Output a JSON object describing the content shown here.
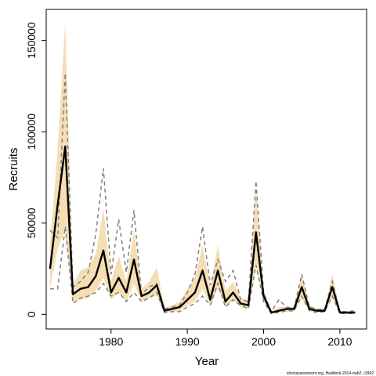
{
  "chart_data": {
    "type": "line",
    "title": "",
    "xlabel": "Year",
    "ylabel": "Recruits",
    "xlim": [
      1971.5,
      2013.5
    ],
    "ylim": [
      -8000,
      167000
    ],
    "xticks": [
      1980,
      1990,
      2000,
      2010
    ],
    "yticks": [
      0,
      50000,
      100000,
      150000
    ],
    "xtick_labels": [
      "1980",
      "1990",
      "2000",
      "2010"
    ],
    "ytick_labels": [
      "0",
      "50000",
      "100000",
      "150000"
    ],
    "grid": false,
    "legend": "none",
    "footnote": "stockassessment.org, Haddock-2014-cwb2, r2992",
    "colors": {
      "band": "#f5deb3",
      "estimate": "#000000",
      "dashed": "#808080"
    },
    "x": [
      1972,
      1973,
      1974,
      1975,
      1976,
      1977,
      1978,
      1979,
      1980,
      1981,
      1982,
      1983,
      1984,
      1985,
      1986,
      1987,
      1988,
      1989,
      1990,
      1991,
      1992,
      1993,
      1994,
      1995,
      1996,
      1997,
      1998,
      1999,
      2000,
      2001,
      2002,
      2003,
      2004,
      2005,
      2006,
      2007,
      2008,
      2009,
      2010,
      2011,
      2012
    ],
    "series": [
      {
        "role": "estimate",
        "style": "solid",
        "values": [
          25000,
          60000,
          92000,
          11000,
          14000,
          15000,
          21000,
          35000,
          12000,
          20000,
          12000,
          30000,
          10000,
          12000,
          16000,
          2000,
          3000,
          4000,
          8000,
          12000,
          24000,
          8000,
          24000,
          7000,
          12000,
          6000,
          5000,
          45000,
          10000,
          1000,
          2000,
          3000,
          3000,
          15000,
          3000,
          2000,
          2000,
          15000,
          1000,
          1000,
          1000
        ]
      },
      {
        "role": "upper-dashed",
        "style": "dashed",
        "values": [
          46000,
          42000,
          132000,
          15000,
          18000,
          23000,
          44000,
          80000,
          22000,
          52000,
          23000,
          57000,
          11000,
          15000,
          17000,
          3000,
          4000,
          5000,
          12000,
          22000,
          48000,
          16000,
          30000,
          18000,
          24000,
          8000,
          7000,
          73000,
          12000,
          1500,
          8000,
          4000,
          3500,
          22000,
          4000,
          3000,
          2500,
          18000,
          1500,
          1500,
          2000
        ]
      },
      {
        "role": "lower-dashed",
        "style": "dashed",
        "values": [
          14000,
          14000,
          48000,
          6000,
          9000,
          10000,
          12000,
          17000,
          10000,
          12000,
          7000,
          12000,
          7000,
          9000,
          12000,
          1000,
          1500,
          1500,
          4000,
          6000,
          10000,
          5000,
          17000,
          4000,
          8000,
          5000,
          3000,
          27000,
          7000,
          500,
          1000,
          2000,
          2000,
          10000,
          2000,
          1000,
          1500,
          10000,
          500,
          500,
          500
        ]
      },
      {
        "role": "band-upper",
        "style": "fill",
        "values": [
          38000,
          90000,
          160000,
          16000,
          24000,
          26000,
          33000,
          58000,
          18000,
          32000,
          18000,
          46000,
          14000,
          18000,
          26000,
          3000,
          5000,
          7000,
          14000,
          20000,
          38000,
          14000,
          38000,
          13000,
          18000,
          9000,
          8000,
          70000,
          13000,
          2000,
          4000,
          4000,
          4000,
          22000,
          5000,
          3000,
          3000,
          22000,
          2000,
          1500,
          1500
        ]
      },
      {
        "role": "band-lower",
        "style": "fill",
        "values": [
          14000,
          36000,
          46000,
          7000,
          8000,
          9000,
          13000,
          20000,
          8000,
          12000,
          7000,
          17000,
          7000,
          9000,
          10000,
          1000,
          1500,
          2000,
          5000,
          7000,
          14000,
          5000,
          14000,
          4000,
          8000,
          4000,
          3000,
          28000,
          7000,
          500,
          1000,
          1500,
          1500,
          9000,
          1500,
          1000,
          1000,
          9000,
          500,
          500,
          500
        ]
      }
    ]
  }
}
